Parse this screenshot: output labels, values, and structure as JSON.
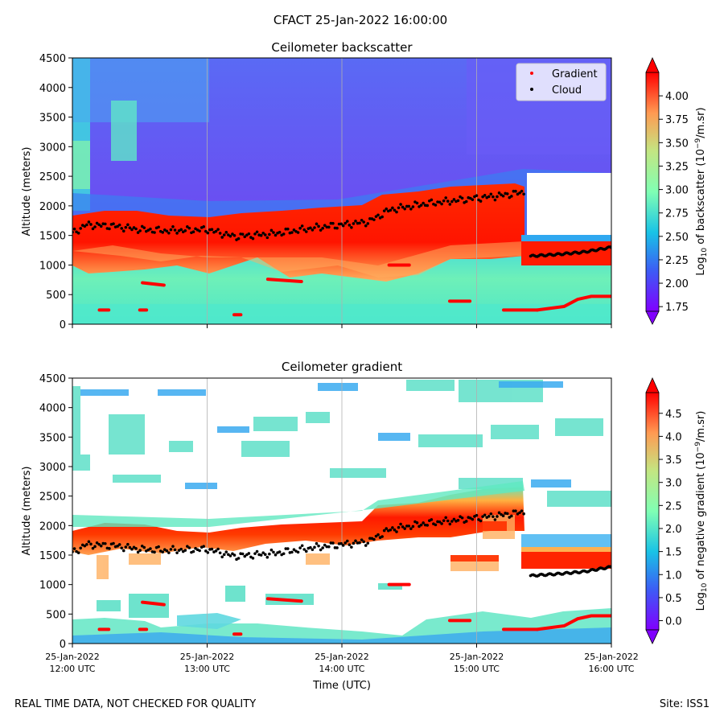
{
  "figure": {
    "title": "CFACT 25-Jan-2022 16:00:00",
    "footer_left": "REAL TIME DATA, NOT CHECKED FOR QUALITY",
    "footer_right": "Site: ISS1"
  },
  "colors": {
    "gradient_marker": "#ff0000",
    "cloud_marker": "#000000",
    "gridline": "#b0b0b0"
  },
  "chart_data": [
    {
      "type": "heatmap",
      "title": "Ceilometer backscatter",
      "xlabel": "",
      "ylabel": "Altitude (meters)",
      "ylim": [
        0,
        4500
      ],
      "yticks": [
        0,
        500,
        1000,
        1500,
        2000,
        2500,
        3000,
        3500,
        4000,
        4500
      ],
      "xlim": [
        0,
        4
      ],
      "xticks_hours": [
        0,
        1,
        2,
        3,
        4
      ],
      "xtick_labels": [],
      "grid": "vertical",
      "legend": {
        "placement": "top-right",
        "entries": [
          "Gradient",
          "Cloud"
        ]
      },
      "colorbar": {
        "label_prefix": "Log",
        "label_sub": "10",
        "label_mid": " of backscatter (10",
        "label_sup": "−9",
        "label_suffix": "/m.sr)",
        "range": [
          1.7,
          4.25
        ],
        "ticks": [
          "1.75",
          "2.00",
          "2.25",
          "2.50",
          "2.75",
          "3.00",
          "3.25",
          "3.50",
          "3.75",
          "4.00"
        ],
        "extend": "both"
      },
      "cloud_top_profile": [
        [
          0,
          1650
        ],
        [
          0.1,
          1800
        ],
        [
          0.3,
          1780
        ],
        [
          0.5,
          1720
        ],
        [
          0.7,
          1700
        ],
        [
          1.0,
          1720
        ],
        [
          1.2,
          1600
        ],
        [
          1.5,
          1650
        ],
        [
          1.8,
          1750
        ],
        [
          2.0,
          1800
        ],
        [
          2.2,
          1850
        ],
        [
          2.35,
          2050
        ],
        [
          2.6,
          2150
        ],
        [
          2.8,
          2200
        ],
        [
          3.0,
          2250
        ],
        [
          3.2,
          2300
        ],
        [
          3.35,
          2350
        ]
      ],
      "low_cloud_profile": [
        [
          3.4,
          1150
        ],
        [
          3.6,
          1180
        ],
        [
          3.8,
          1220
        ],
        [
          4.0,
          1300
        ]
      ],
      "gradient_segments": [
        [
          [
            0.2,
            240
          ],
          [
            0.27,
            240
          ]
        ],
        [
          [
            0.5,
            240
          ],
          [
            0.55,
            240
          ]
        ],
        [
          [
            0.52,
            700
          ],
          [
            0.68,
            660
          ]
        ],
        [
          [
            1.2,
            160
          ],
          [
            1.25,
            160
          ]
        ],
        [
          [
            1.45,
            760
          ],
          [
            1.7,
            720
          ]
        ],
        [
          [
            2.35,
            1000
          ],
          [
            2.5,
            1000
          ]
        ],
        [
          [
            2.8,
            390
          ],
          [
            2.95,
            390
          ]
        ],
        [
          [
            3.2,
            240
          ],
          [
            3.45,
            240
          ]
        ],
        [
          [
            3.45,
            240
          ],
          [
            3.65,
            300
          ],
          [
            3.75,
            420
          ],
          [
            3.85,
            470
          ],
          [
            4.0,
            470
          ]
        ]
      ]
    },
    {
      "type": "heatmap",
      "title": "Ceilometer gradient",
      "xlabel": "Time (UTC)",
      "ylabel": "Altitude (meters)",
      "ylim": [
        0,
        4500
      ],
      "yticks": [
        0,
        500,
        1000,
        1500,
        2000,
        2500,
        3000,
        3500,
        4000,
        4500
      ],
      "xlim": [
        0,
        4
      ],
      "xticks_hours": [
        0,
        1,
        2,
        3,
        4
      ],
      "xtick_labels": [
        [
          "25-Jan-2022",
          "12:00 UTC"
        ],
        [
          "25-Jan-2022",
          "13:00 UTC"
        ],
        [
          "25-Jan-2022",
          "14:00 UTC"
        ],
        [
          "25-Jan-2022",
          "15:00 UTC"
        ],
        [
          "25-Jan-2022",
          "16:00 UTC"
        ]
      ],
      "grid": "vertical",
      "colorbar": {
        "label_prefix": "Log",
        "label_sub": "10",
        "label_mid": " of negative gradient (10",
        "label_sup": "−9",
        "label_suffix": "/m.sr)",
        "range": [
          -0.2,
          4.95
        ],
        "ticks": [
          "0.0",
          "0.5",
          "1.0",
          "1.5",
          "2.0",
          "2.5",
          "3.0",
          "3.5",
          "4.0",
          "4.5"
        ],
        "extend": "both"
      }
    }
  ]
}
